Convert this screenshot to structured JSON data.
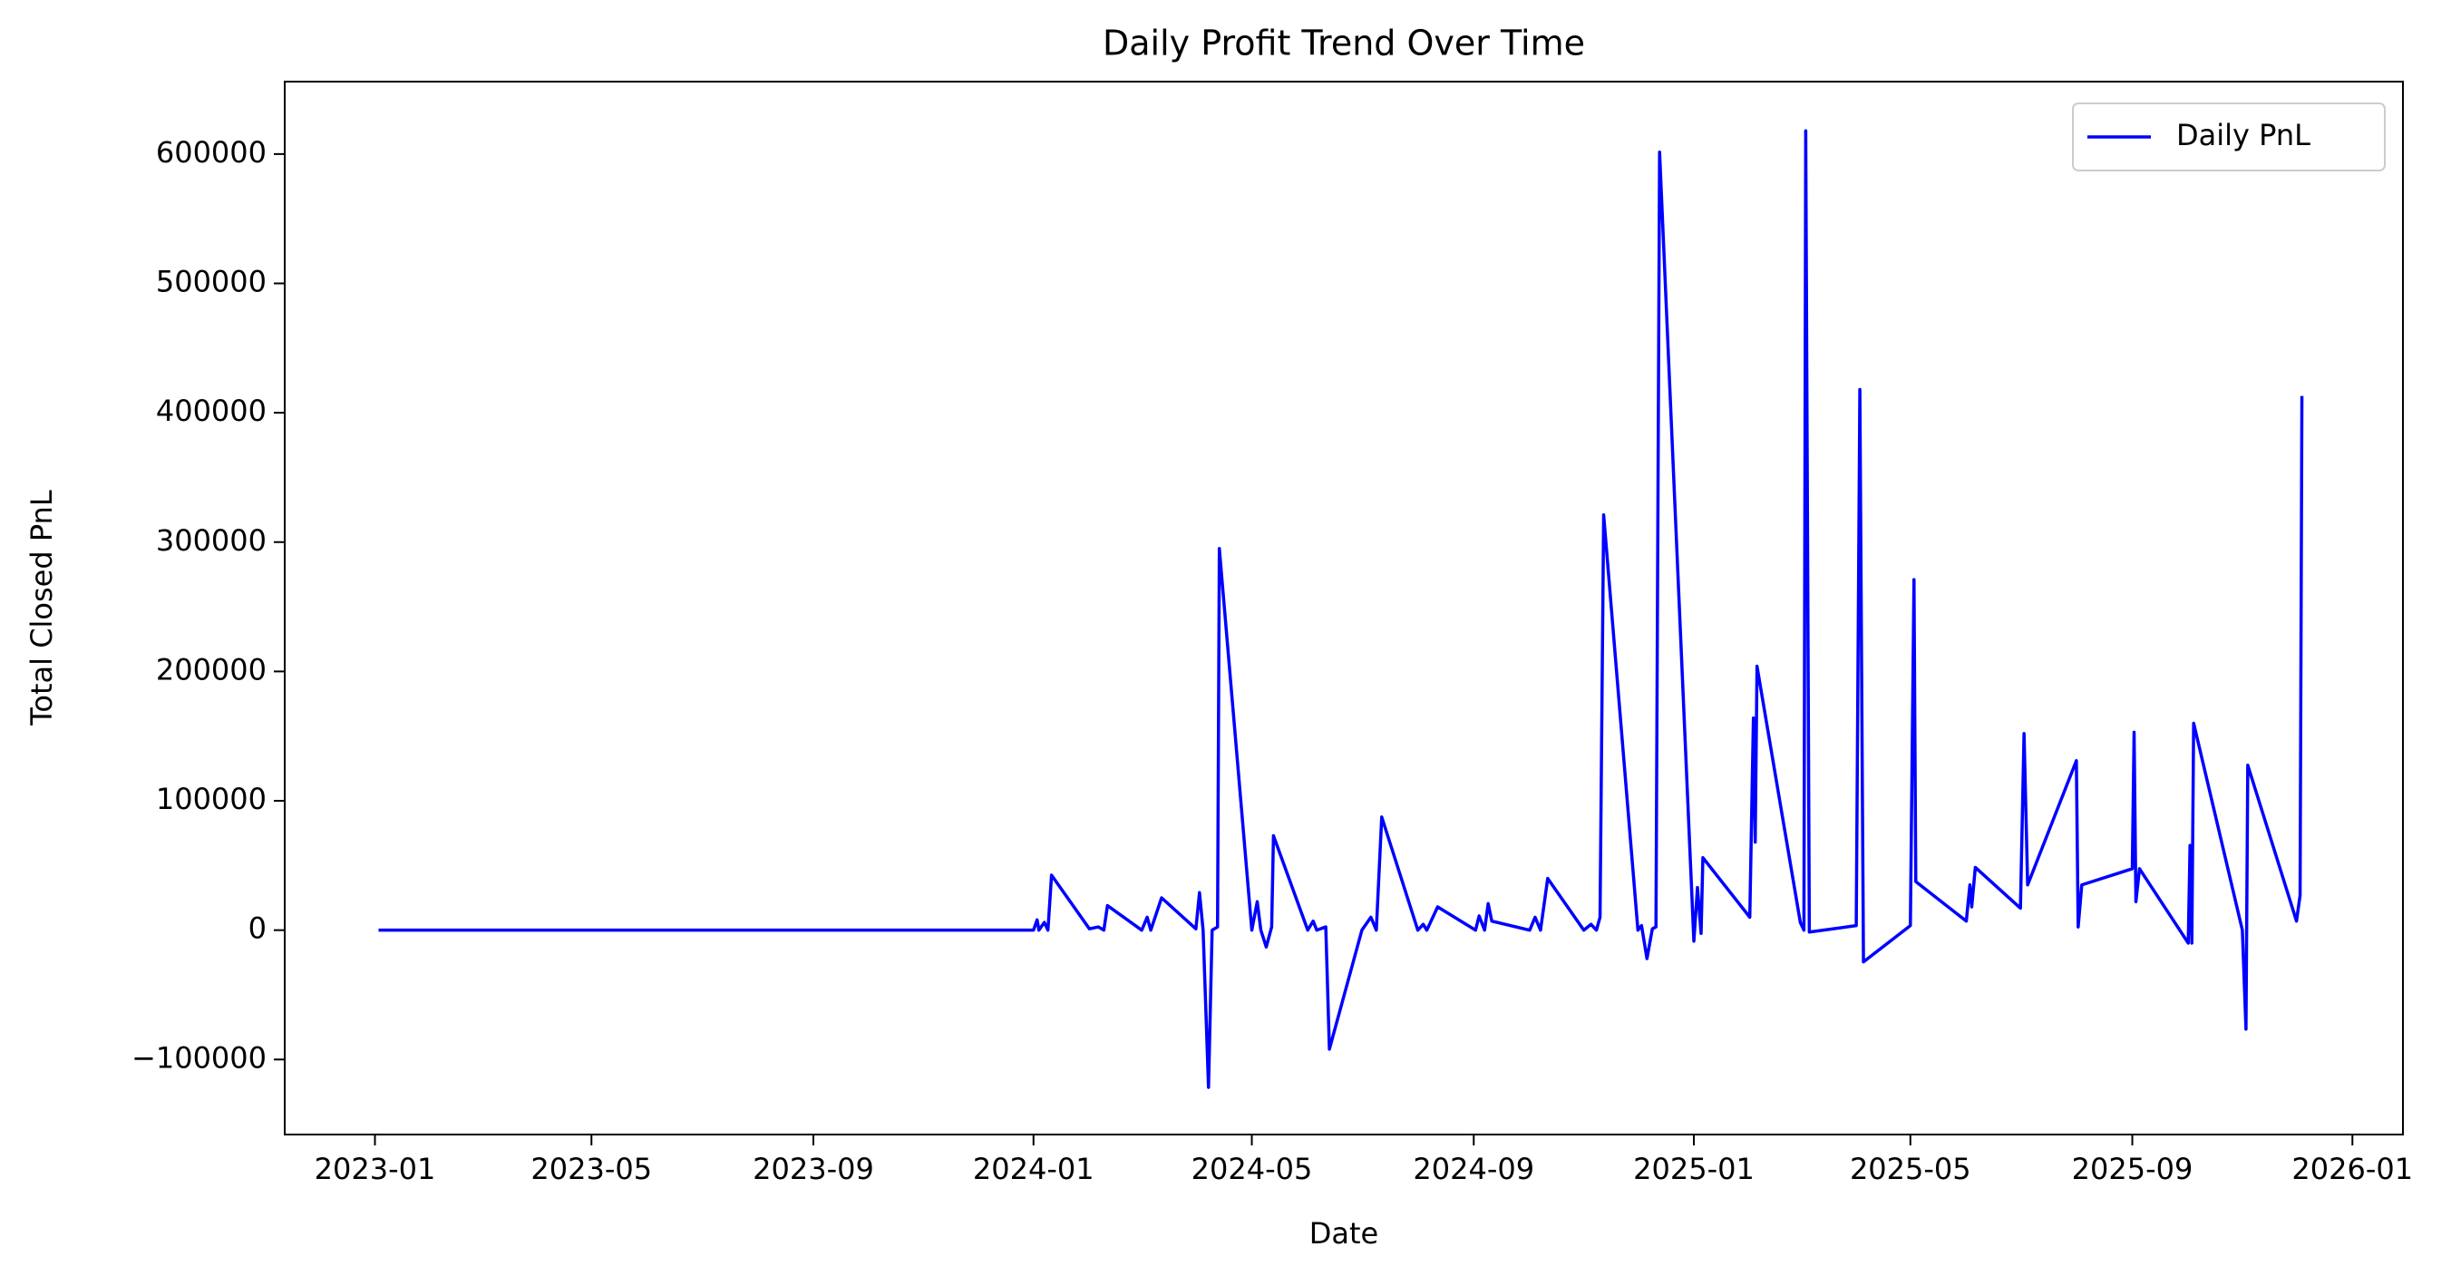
{
  "chart_data": {
    "type": "line",
    "title": "Daily Profit Trend Over Time",
    "xlabel": "Date",
    "ylabel": "Total Closed PnL",
    "x": [
      "2023-01-03",
      "2024-01-01",
      "2024-01-03",
      "2024-01-04",
      "2024-01-07",
      "2024-01-09",
      "2024-01-11",
      "2024-02-01",
      "2024-02-06",
      "2024-02-09",
      "2024-02-11",
      "2024-03-01",
      "2024-03-04",
      "2024-03-06",
      "2024-03-12",
      "2024-03-31",
      "2024-04-02",
      "2024-04-04",
      "2024-04-07",
      "2024-04-09",
      "2024-04-12",
      "2024-04-13",
      "2024-05-01",
      "2024-05-04",
      "2024-05-06",
      "2024-05-09",
      "2024-05-12",
      "2024-05-13",
      "2024-06-01",
      "2024-06-04",
      "2024-06-06",
      "2024-06-11",
      "2024-06-13",
      "2024-07-01",
      "2024-07-06",
      "2024-07-09",
      "2024-07-12",
      "2024-08-01",
      "2024-08-04",
      "2024-08-06",
      "2024-08-12",
      "2024-09-02",
      "2024-09-04",
      "2024-09-07",
      "2024-09-09",
      "2024-09-11",
      "2024-10-02",
      "2024-10-05",
      "2024-10-08",
      "2024-10-12",
      "2024-11-01",
      "2024-11-05",
      "2024-11-08",
      "2024-11-10",
      "2024-11-12",
      "2024-12-01",
      "2024-12-03",
      "2024-12-06",
      "2024-12-09",
      "2024-12-11",
      "2024-12-13",
      "2025-01-01",
      "2025-01-03",
      "2025-01-05",
      "2025-01-06",
      "2025-02-01",
      "2025-02-03",
      "2025-02-04",
      "2025-02-05",
      "2025-03-01",
      "2025-03-03",
      "2025-03-04",
      "2025-03-06",
      "2025-04-01",
      "2025-04-03",
      "2025-04-05",
      "2025-05-01",
      "2025-05-03",
      "2025-05-04",
      "2025-06-01",
      "2025-06-03",
      "2025-06-04",
      "2025-06-06",
      "2025-07-01",
      "2025-07-03",
      "2025-07-05",
      "2025-08-01",
      "2025-08-02",
      "2025-08-04",
      "2025-09-01",
      "2025-09-02",
      "2025-09-03",
      "2025-09-05",
      "2025-10-02",
      "2025-10-03",
      "2025-10-04",
      "2025-10-05",
      "2025-11-01",
      "2025-11-03",
      "2025-11-04",
      "2025-12-01",
      "2025-12-03",
      "2025-12-04"
    ],
    "series": [
      {
        "name": "Daily PnL",
        "color": "#0000ff",
        "values": [
          0,
          0,
          8000,
          0,
          6000,
          0,
          42500,
          1000,
          2500,
          0,
          19000,
          0,
          10000,
          0,
          25000,
          1000,
          29000,
          0,
          -121500,
          0,
          2500,
          295000,
          0,
          22000,
          0,
          -13000,
          2500,
          73000,
          0,
          7000,
          0,
          2500,
          -92000,
          0,
          10000,
          0,
          87500,
          0,
          4500,
          0,
          18000,
          0,
          11000,
          0,
          20500,
          7000,
          0,
          10000,
          0,
          40000,
          0,
          4500,
          0,
          10000,
          321000,
          0,
          3500,
          -22000,
          1000,
          2500,
          601500,
          -8500,
          33000,
          -2500,
          56000,
          10000,
          164000,
          68000,
          204000,
          6000,
          0,
          618000,
          -1500,
          3500,
          418000,
          -24500,
          3500,
          271000,
          37500,
          7000,
          35000,
          18000,
          48500,
          17000,
          152000,
          35000,
          131000,
          2500,
          35000,
          47500,
          153000,
          22000,
          47500,
          -10000,
          65500,
          -10000,
          160000,
          0,
          -76500,
          127500,
          7000,
          27000,
          413000
        ]
      }
    ],
    "xlim": [
      "2022-11-12",
      "2026-01-29"
    ],
    "xticks": [
      {
        "value": "2023-01-01",
        "label": "2023-01"
      },
      {
        "value": "2023-05-01",
        "label": "2023-05"
      },
      {
        "value": "2023-09-01",
        "label": "2023-09"
      },
      {
        "value": "2024-01-01",
        "label": "2024-01"
      },
      {
        "value": "2024-05-01",
        "label": "2024-05"
      },
      {
        "value": "2024-09-01",
        "label": "2024-09"
      },
      {
        "value": "2025-01-01",
        "label": "2025-01"
      },
      {
        "value": "2025-05-01",
        "label": "2025-05"
      },
      {
        "value": "2025-09-01",
        "label": "2025-09"
      },
      {
        "value": "2026-01-01",
        "label": "2026-01"
      }
    ],
    "ylim": [
      -158000,
      656000
    ],
    "yticks": [
      {
        "value": -100000,
        "label": "−100000"
      },
      0,
      100000,
      200000,
      300000,
      400000,
      500000,
      600000
    ],
    "legend": "upper right",
    "grid": false
  }
}
